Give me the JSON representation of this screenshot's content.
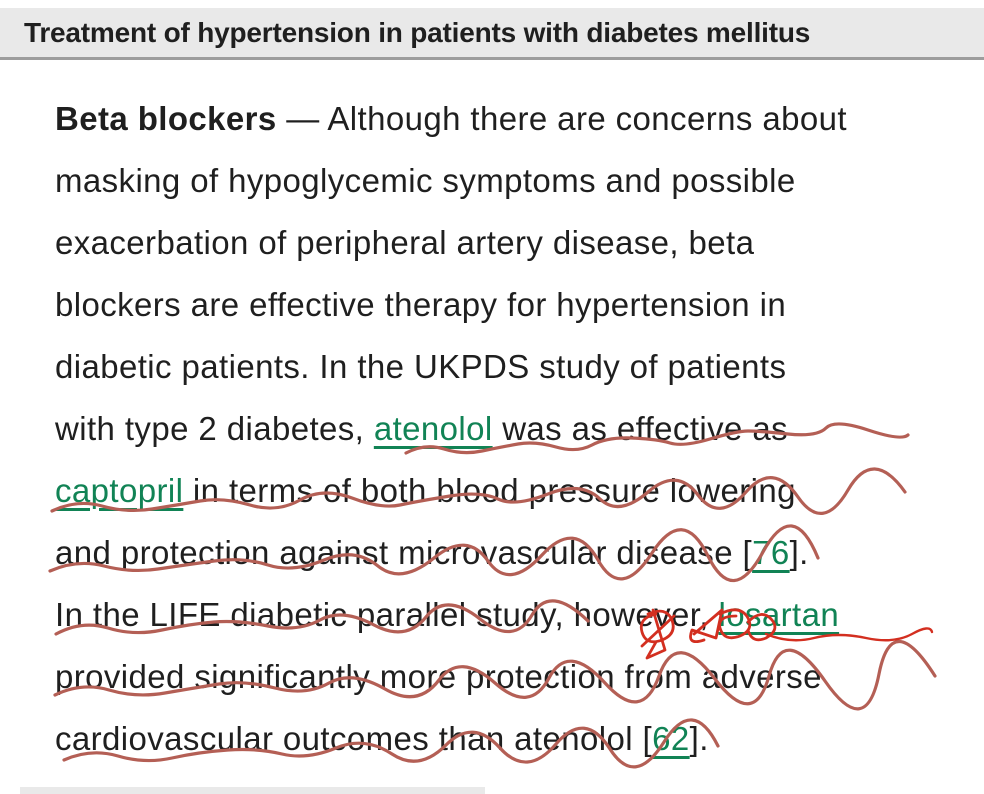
{
  "header": {
    "title": "Treatment of hypertension in patients with diabetes mellitus"
  },
  "article": {
    "lines": [
      {
        "segments": [
          {
            "style": "bold",
            "name": "paragraph-lead-term",
            "text": "Beta blockers"
          },
          {
            "style": "plain",
            "name": "body-text",
            "text": " — Although there are concerns about"
          }
        ]
      },
      {
        "segments": [
          {
            "style": "plain",
            "name": "body-text",
            "text": "masking of hypoglycemic symptoms and possible"
          }
        ]
      },
      {
        "segments": [
          {
            "style": "plain",
            "name": "body-text",
            "text": "exacerbation of peripheral artery disease, beta"
          }
        ]
      },
      {
        "segments": [
          {
            "style": "plain",
            "name": "body-text",
            "text": "blockers are effective therapy for hypertension in"
          }
        ]
      },
      {
        "segments": [
          {
            "style": "plain",
            "name": "body-text",
            "text": "diabetic patients. In the UKPDS study of patients"
          }
        ]
      },
      {
        "segments": [
          {
            "style": "plain",
            "name": "body-text",
            "text": "with type 2 diabetes, "
          },
          {
            "style": "link",
            "name": "link-atenolol",
            "text": "atenolol"
          },
          {
            "style": "plain",
            "name": "body-text",
            "text": " was as effective as"
          }
        ]
      },
      {
        "segments": [
          {
            "style": "link",
            "name": "link-captopril",
            "text": "captopril"
          },
          {
            "style": "plain",
            "name": "body-text",
            "text": " in terms of both blood pressure lowering"
          }
        ]
      },
      {
        "segments": [
          {
            "style": "plain",
            "name": "body-text",
            "text": "and protection against microvascular disease ["
          },
          {
            "style": "link",
            "name": "ref-link-76",
            "text": "76"
          },
          {
            "style": "plain",
            "name": "body-text",
            "text": "]."
          }
        ]
      },
      {
        "segments": [
          {
            "style": "plain",
            "name": "body-text",
            "text": "In the LIFE diabetic parallel study, however, "
          },
          {
            "style": "link",
            "name": "link-losartan",
            "text": "losartan"
          }
        ]
      },
      {
        "segments": [
          {
            "style": "plain",
            "name": "body-text",
            "text": "provided significantly more protection from adverse"
          }
        ]
      },
      {
        "segments": [
          {
            "style": "plain",
            "name": "body-text",
            "text": "cardiovascular outcomes than atenolol ["
          },
          {
            "style": "link",
            "name": "ref-link-62",
            "text": "62"
          },
          {
            "style": "plain",
            "name": "body-text",
            "text": "]."
          }
        ]
      }
    ]
  },
  "colors": {
    "text": "#1f1f1f",
    "header_bg": "#e9e9e9",
    "header_border": "#9d9d9d",
    "link_green": "#118355",
    "underline_red": "#b45f55",
    "scribble_red": "#d32f20"
  }
}
